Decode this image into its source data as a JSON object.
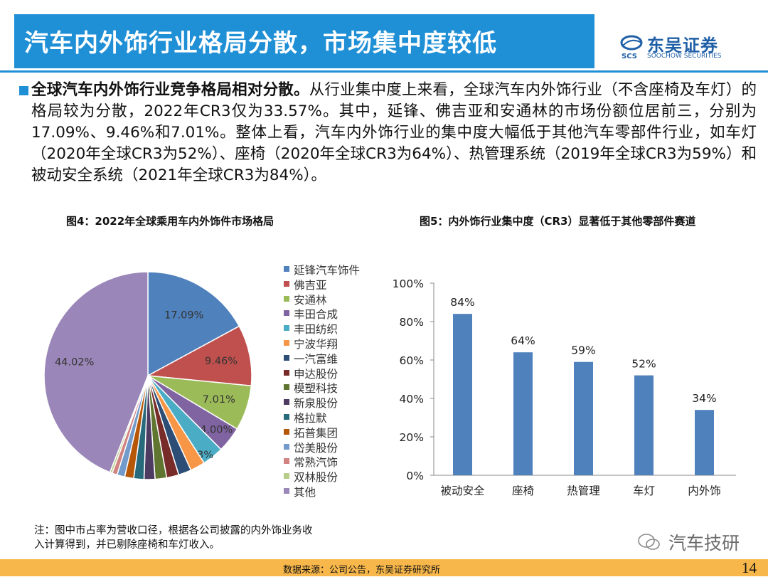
{
  "header": {
    "title": "汽车内外饰行业格局分散，市场集中度较低",
    "logo_name": "东吴证券",
    "logo_sub": "SOOCHOW SECURITIES",
    "logo_mark": "SCS"
  },
  "body": {
    "lead": "全球汽车内外饰行业竞争格局相对分散。",
    "text": "从行业集中度上来看，全球汽车内外饰行业（不含座椅及车灯）的格局较为分散，2022年CR3仅为33.57%。其中，延锋、佛吉亚和安通林的市场份额位居前三，分别为17.09%、9.46%和7.01%。整体上看，汽车内外饰行业的集中度大幅低于其他汽车零部件行业，如车灯（2020年全球CR3为52%）、座椅（2020年全球CR3为64%）、热管理系统（2019年全球CR3为59%）和被动安全系统（2021年全球CR3为84%）。"
  },
  "figures": {
    "fig4_title": "图4：2022年全球乘用车内外饰件市场格局",
    "fig5_title": "图5：内外饰行业集中度（CR3）显著低于其他零部件赛道"
  },
  "chart_data": [
    {
      "type": "pie",
      "categories": [
        "延锋汽车饰件",
        "佛吉亚",
        "安通林",
        "丰田合成",
        "丰田纺织",
        "宁波华翔",
        "一汽富维",
        "申达股份",
        "模塑科技",
        "新泉股份",
        "格拉默",
        "拓普集团",
        "岱美股份",
        "常熟汽饰",
        "双林股份",
        "其他"
      ],
      "values": [
        17.09,
        9.46,
        7.01,
        4.0,
        3.33,
        2.3,
        2.0,
        1.9,
        1.8,
        1.7,
        1.6,
        1.4,
        1.2,
        0.8,
        0.37,
        44.02
      ],
      "labels": [
        "17.09%",
        "9.46%",
        "7.01%",
        "4.00%",
        "3.33%",
        "",
        "",
        "",
        "",
        "",
        "",
        "",
        "",
        "",
        "",
        "44.02%"
      ],
      "colors": [
        "#4f81bd",
        "#c0504d",
        "#9bbb59",
        "#8064a2",
        "#4bacc6",
        "#f79646",
        "#2c4d75",
        "#772c2a",
        "#5f7530",
        "#4d3b62",
        "#276a7c",
        "#b65708",
        "#729aca",
        "#d08380",
        "#b7cd8a",
        "#9a86b8"
      ],
      "legend_position": "right"
    },
    {
      "type": "bar",
      "categories": [
        "被动安全",
        "座椅",
        "热管理",
        "车灯",
        "内外饰"
      ],
      "values": [
        84,
        64,
        59,
        52,
        34
      ],
      "value_labels": [
        "84%",
        "64%",
        "59%",
        "52%",
        "34%"
      ],
      "ylim": [
        0,
        100
      ],
      "yticks": [
        "0%",
        "20%",
        "40%",
        "60%",
        "80%",
        "100%"
      ],
      "color": "#4f81bd"
    }
  ],
  "note": {
    "line1": "注：图中市占率为营收口径，根据各公司披露的内外饰业务收",
    "line2": "入计算得到，并已剔除座椅和车灯收入。"
  },
  "watermark": "汽车技研",
  "footer": {
    "source": "数据来源：公司公告，东吴证券研究所",
    "page": "14"
  }
}
